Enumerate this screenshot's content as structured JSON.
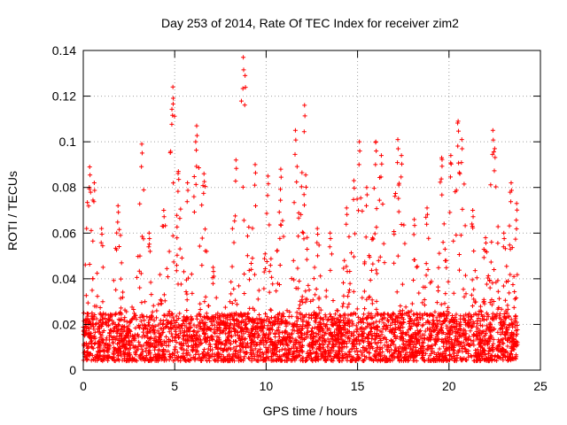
{
  "chart_data": {
    "type": "scatter",
    "title": "Day 253 of 2014, Rate Of TEC Index for receiver zim2",
    "xlabel": "GPS time / hours",
    "ylabel": "ROTI / TECUs",
    "xlim": [
      0,
      25
    ],
    "ylim": [
      0,
      0.14
    ],
    "xticks": [
      0,
      5,
      10,
      15,
      20,
      25
    ],
    "yticks": [
      0,
      0.02,
      0.04,
      0.06,
      0.08,
      0.1,
      0.12,
      0.14
    ],
    "xtick_labels": [
      "0",
      "5",
      "10",
      "15",
      "20",
      "25"
    ],
    "ytick_labels": [
      "0",
      "0.02",
      "0.04",
      "0.06",
      "0.08",
      "0.1",
      "0.12",
      "0.14"
    ],
    "grid": true,
    "marker": "+",
    "color": "#ff0000",
    "series": [
      {
        "name": "ROTI",
        "peaks": [
          {
            "x": 0.35,
            "y": 0.089
          },
          {
            "x": 0.6,
            "y": 0.082
          },
          {
            "x": 1.0,
            "y": 0.062
          },
          {
            "x": 1.9,
            "y": 0.072
          },
          {
            "x": 3.2,
            "y": 0.099
          },
          {
            "x": 3.6,
            "y": 0.06
          },
          {
            "x": 4.4,
            "y": 0.07
          },
          {
            "x": 4.9,
            "y": 0.124
          },
          {
            "x": 5.2,
            "y": 0.087
          },
          {
            "x": 5.7,
            "y": 0.082
          },
          {
            "x": 6.2,
            "y": 0.107
          },
          {
            "x": 6.6,
            "y": 0.086
          },
          {
            "x": 7.1,
            "y": 0.045
          },
          {
            "x": 8.35,
            "y": 0.092
          },
          {
            "x": 8.75,
            "y": 0.137
          },
          {
            "x": 8.85,
            "y": 0.129
          },
          {
            "x": 9.4,
            "y": 0.09
          },
          {
            "x": 10.1,
            "y": 0.085
          },
          {
            "x": 10.8,
            "y": 0.088
          },
          {
            "x": 11.6,
            "y": 0.105
          },
          {
            "x": 12.1,
            "y": 0.116
          },
          {
            "x": 12.8,
            "y": 0.062
          },
          {
            "x": 13.5,
            "y": 0.06
          },
          {
            "x": 14.4,
            "y": 0.071
          },
          {
            "x": 14.8,
            "y": 0.083
          },
          {
            "x": 15.1,
            "y": 0.1
          },
          {
            "x": 15.5,
            "y": 0.08
          },
          {
            "x": 16.0,
            "y": 0.1
          },
          {
            "x": 16.3,
            "y": 0.094
          },
          {
            "x": 17.2,
            "y": 0.101
          },
          {
            "x": 17.4,
            "y": 0.094
          },
          {
            "x": 18.1,
            "y": 0.066
          },
          {
            "x": 18.8,
            "y": 0.071
          },
          {
            "x": 19.6,
            "y": 0.093
          },
          {
            "x": 20.1,
            "y": 0.094
          },
          {
            "x": 20.5,
            "y": 0.109
          },
          {
            "x": 20.7,
            "y": 0.101
          },
          {
            "x": 21.3,
            "y": 0.07
          },
          {
            "x": 22.0,
            "y": 0.058
          },
          {
            "x": 22.4,
            "y": 0.105
          },
          {
            "x": 22.5,
            "y": 0.097
          },
          {
            "x": 23.0,
            "y": 0.06
          },
          {
            "x": 23.4,
            "y": 0.082
          },
          {
            "x": 23.7,
            "y": 0.073
          }
        ],
        "baseline_band": [
          0.004,
          0.025
        ],
        "x_range": [
          0.0,
          23.75
        ]
      }
    ]
  }
}
